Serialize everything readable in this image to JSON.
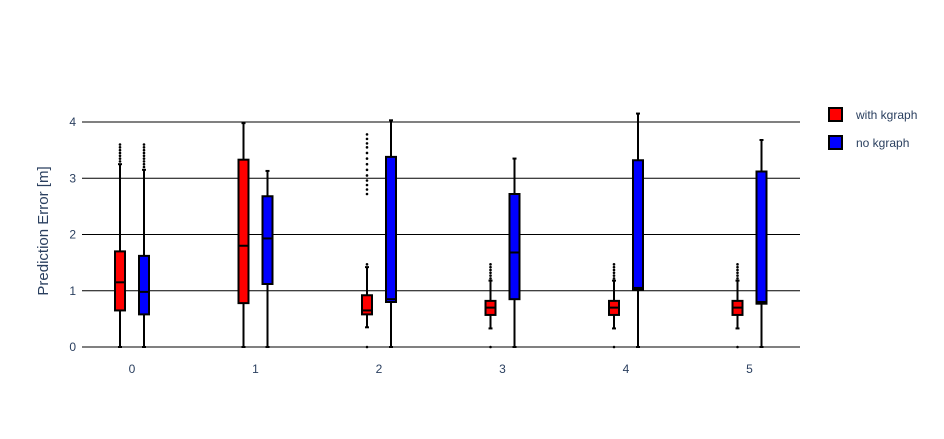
{
  "chart_data": {
    "type": "box",
    "title": "",
    "xlabel": "",
    "ylabel": "Prediction Error [m]",
    "categories": [
      "0",
      "1",
      "2",
      "3",
      "4",
      "5"
    ],
    "yticks": [
      "0",
      "1",
      "2",
      "3",
      "4"
    ],
    "ylim": [
      0,
      4.4
    ],
    "grid": "horizontal",
    "legend_position": "top-right",
    "series": [
      {
        "name": "with kgraph",
        "color": "#ff0000",
        "boxes": [
          {
            "category": "0",
            "min": 0.0,
            "q1": 0.65,
            "median": 1.15,
            "q3": 1.7,
            "max": 3.25,
            "outliers": [
              3.3,
              3.35,
              3.4,
              3.45,
              3.5,
              3.55,
              3.6
            ]
          },
          {
            "category": "1",
            "min": 0.0,
            "q1": 0.78,
            "median": 1.8,
            "q3": 3.33,
            "max": 3.98,
            "outliers": []
          },
          {
            "category": "2",
            "min": 0.35,
            "q1": 0.58,
            "median": 0.65,
            "q3": 0.92,
            "max": 1.42,
            "outliers": [
              0.0,
              1.47,
              2.72,
              2.8,
              2.88,
              2.96,
              3.05,
              3.15,
              3.25,
              3.35,
              3.45,
              3.55,
              3.62,
              3.7,
              3.78
            ]
          },
          {
            "category": "3",
            "min": 0.33,
            "q1": 0.57,
            "median": 0.7,
            "q3": 0.82,
            "max": 1.18,
            "outliers": [
              0.0,
              1.22,
              1.27,
              1.32,
              1.37,
              1.42,
              1.47
            ]
          },
          {
            "category": "4",
            "min": 0.33,
            "q1": 0.57,
            "median": 0.7,
            "q3": 0.82,
            "max": 1.18,
            "outliers": [
              0.0,
              1.22,
              1.27,
              1.32,
              1.37,
              1.42,
              1.47
            ]
          },
          {
            "category": "5",
            "min": 0.33,
            "q1": 0.57,
            "median": 0.7,
            "q3": 0.82,
            "max": 1.18,
            "outliers": [
              0.0,
              1.22,
              1.27,
              1.32,
              1.37,
              1.42,
              1.47
            ]
          }
        ]
      },
      {
        "name": "no kgraph",
        "color": "#0000ff",
        "boxes": [
          {
            "category": "0",
            "min": 0.0,
            "q1": 0.58,
            "median": 0.98,
            "q3": 1.62,
            "max": 3.15,
            "outliers": [
              3.2,
              3.25,
              3.3,
              3.35,
              3.4,
              3.45,
              3.5,
              3.55,
              3.6
            ]
          },
          {
            "category": "1",
            "min": 0.0,
            "q1": 1.12,
            "median": 1.93,
            "q3": 2.68,
            "max": 3.13,
            "outliers": []
          },
          {
            "category": "2",
            "min": 0.0,
            "q1": 0.8,
            "median": 0.85,
            "q3": 3.38,
            "max": 4.03,
            "outliers": []
          },
          {
            "category": "3",
            "min": 0.0,
            "q1": 0.85,
            "median": 1.68,
            "q3": 2.72,
            "max": 3.35,
            "outliers": []
          },
          {
            "category": "4",
            "min": 0.0,
            "q1": 1.02,
            "median": 1.05,
            "q3": 3.32,
            "max": 4.15,
            "outliers": []
          },
          {
            "category": "5",
            "min": 0.0,
            "q1": 0.77,
            "median": 0.8,
            "q3": 3.12,
            "max": 3.68,
            "outliers": []
          }
        ]
      }
    ]
  }
}
